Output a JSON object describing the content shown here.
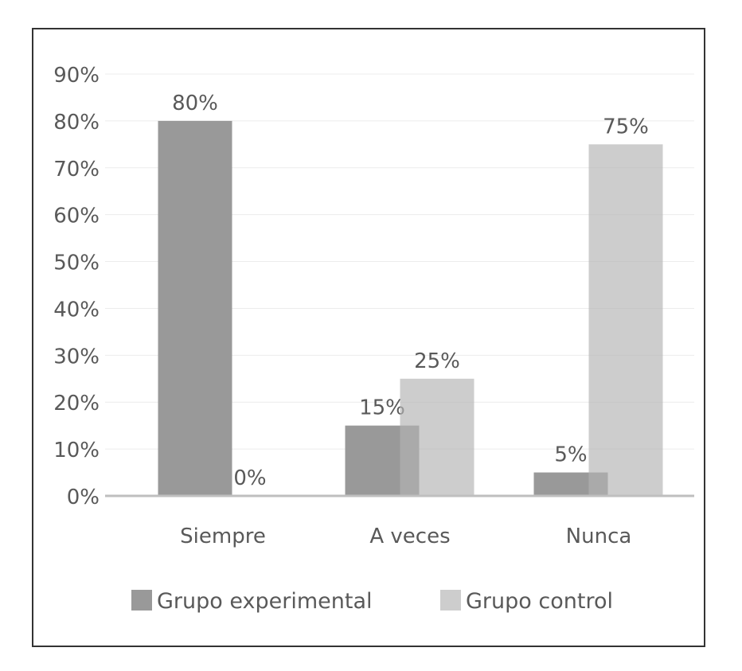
{
  "chart_data": {
    "type": "bar",
    "categories": [
      "Siempre",
      "A veces",
      "Nunca"
    ],
    "series": [
      {
        "name": "Grupo experimental",
        "values": [
          80,
          15,
          5
        ],
        "labels": [
          "80%",
          "15%",
          "5%"
        ],
        "color": "#999999"
      },
      {
        "name": "Grupo control",
        "values": [
          0,
          25,
          75
        ],
        "labels": [
          "0%",
          "25%",
          "75%"
        ],
        "color": "#b3b3b3"
      }
    ],
    "yticks": [
      "0%",
      "10%",
      "20%",
      "30%",
      "40%",
      "50%",
      "60%",
      "70%",
      "80%",
      "90%"
    ],
    "ylim": [
      0,
      90
    ],
    "grid": true,
    "legend": "bottom",
    "title": "",
    "xlabel": "",
    "ylabel": ""
  }
}
